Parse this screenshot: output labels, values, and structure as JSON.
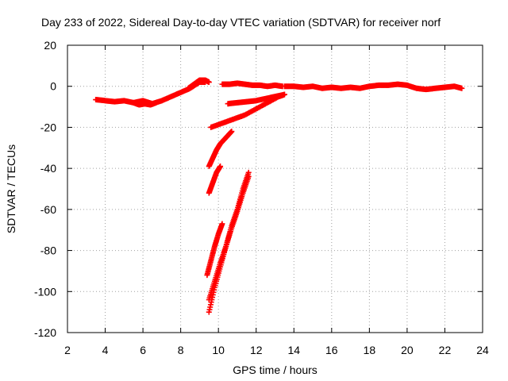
{
  "chart_data": {
    "type": "scatter",
    "title": "Day 233 of 2022, Sidereal Day-to-day VTEC variation (SDTVAR) for receiver norf",
    "xlabel": "GPS time / hours",
    "ylabel": "SDTVAR / TECUs",
    "xlim": [
      2,
      24
    ],
    "ylim": [
      -120,
      20
    ],
    "xticks": [
      2,
      4,
      6,
      8,
      10,
      12,
      14,
      16,
      18,
      20,
      22,
      24
    ],
    "yticks": [
      -120,
      -100,
      -80,
      -60,
      -40,
      -20,
      0,
      20
    ],
    "grid": true,
    "marker": "+",
    "series_color": "#ff0000",
    "series": [
      {
        "x": [
          3.5,
          4.0,
          4.5,
          5.0,
          5.5,
          6.0,
          6.5,
          7.0,
          7.5,
          8.0,
          8.5,
          9.0,
          9.3
        ],
        "y": [
          -6.5,
          -7,
          -7.5,
          -7,
          -8,
          -7,
          -8.5,
          -7,
          -5,
          -3,
          -1,
          2,
          2
        ]
      },
      {
        "x": [
          5.5,
          5.8,
          6.1,
          6.4,
          6.7
        ],
        "y": [
          -8,
          -9,
          -8.5,
          -9,
          -8
        ]
      },
      {
        "x": [
          8.4,
          8.7,
          9.0,
          9.3,
          9.5
        ],
        "y": [
          -1,
          1,
          3,
          3,
          2
        ]
      },
      {
        "x": [
          13.5,
          14,
          14.5,
          15,
          15.5,
          16,
          16.5,
          17,
          17.5,
          18,
          18.5,
          19,
          19.5,
          20,
          20.5,
          21,
          21.5,
          22,
          22.5,
          22.9
        ],
        "y": [
          0,
          0,
          -0.5,
          0,
          -1,
          -0.5,
          -1,
          -0.5,
          -1,
          0,
          0.5,
          0.5,
          1,
          0.5,
          -1,
          -1.5,
          -1,
          -0.5,
          0,
          -1
        ]
      },
      {
        "x": [
          10.2,
          10.6,
          11.0,
          11.4,
          11.8,
          12.2,
          12.6,
          13.0,
          13.4
        ],
        "y": [
          1,
          1,
          1.5,
          1,
          0.5,
          0.5,
          0,
          0.5,
          0
        ]
      },
      {
        "x": [
          10.5,
          11.0,
          11.5,
          12.0,
          12.5,
          13.0,
          13.5
        ],
        "y": [
          -8.5,
          -8,
          -7.5,
          -7,
          -6,
          -5,
          -4
        ]
      },
      {
        "x": [
          9.6,
          10.2,
          10.8,
          11.4,
          12.0,
          12.6,
          13.2,
          13.5
        ],
        "y": [
          -20,
          -18,
          -16,
          -14,
          -11,
          -8,
          -5,
          -4
        ]
      },
      {
        "x": [
          9.5,
          9.7,
          9.9,
          10.1,
          10.3,
          10.5,
          10.7
        ],
        "y": [
          -39,
          -35,
          -31,
          -28,
          -26,
          -24,
          -22
        ]
      },
      {
        "x": [
          9.5,
          9.7,
          9.9,
          10.1
        ],
        "y": [
          -52,
          -47,
          -42,
          -39
        ]
      },
      {
        "x": [
          9.4,
          9.6,
          9.8,
          10.0,
          10.2
        ],
        "y": [
          -92,
          -85,
          -78,
          -72,
          -67
        ]
      },
      {
        "x": [
          9.5,
          9.8,
          10.1,
          10.4,
          10.7,
          11.0,
          11.3,
          11.6
        ],
        "y": [
          -110,
          -98,
          -88,
          -78,
          -68,
          -60,
          -50,
          -42
        ]
      },
      {
        "x": [
          9.5,
          9.8,
          10.1,
          10.4,
          10.7,
          11.0,
          11.3,
          11.6
        ],
        "y": [
          -104,
          -95,
          -86,
          -78,
          -69,
          -61,
          -52,
          -44
        ]
      }
    ]
  }
}
